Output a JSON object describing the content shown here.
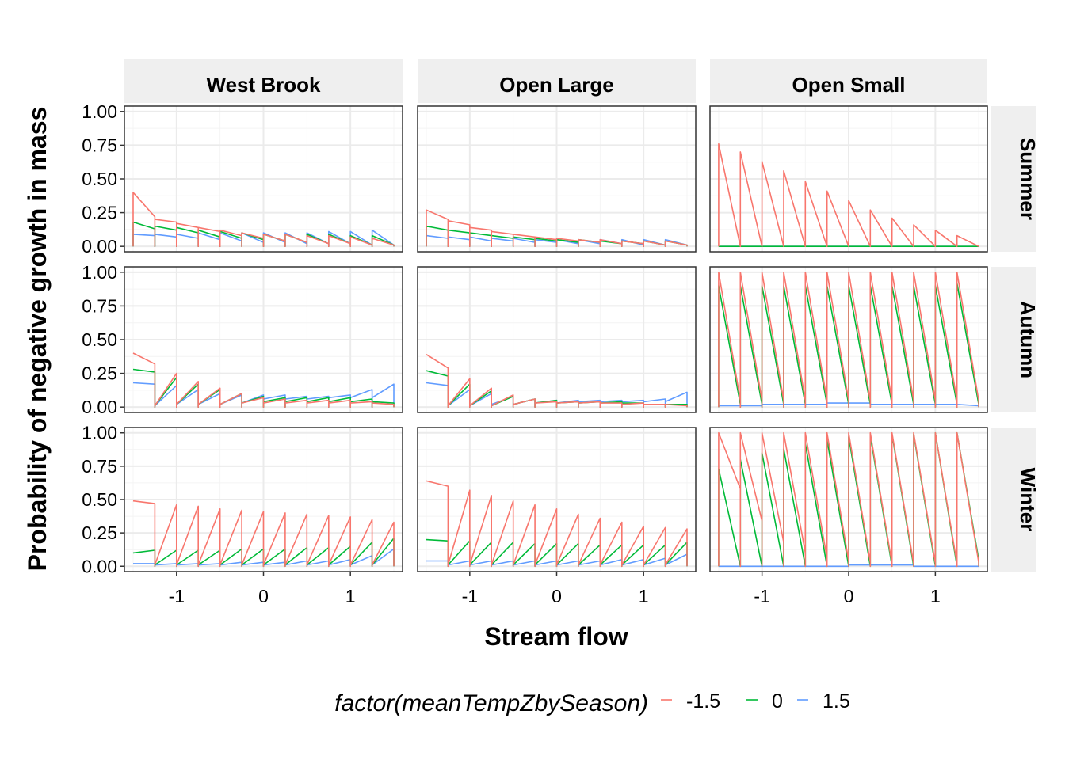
{
  "chart_data": {
    "type": "line",
    "ylabel": "Probability of negative growth in mass",
    "xlabel": "Stream flow",
    "columns": [
      "West Brook",
      "Open Large",
      "Open Small"
    ],
    "rows": [
      "Summer",
      "Autumn",
      "Winter"
    ],
    "xlim": [
      -1.6,
      1.6
    ],
    "ylim": [
      0,
      1
    ],
    "x_ticks": [
      -1,
      0,
      1
    ],
    "x_tick_labels": [
      "-1",
      "0",
      "1"
    ],
    "y_ticks": [
      0,
      0.25,
      0.5,
      0.75,
      1
    ],
    "y_tick_labels": [
      "0.00",
      "0.25",
      "0.50",
      "0.75",
      "1.00"
    ],
    "x_breaks": [
      -1.5,
      -1.25,
      -1.0,
      -0.75,
      -0.5,
      -0.25,
      0.0,
      0.25,
      0.5,
      0.75,
      1.0,
      1.25,
      1.5
    ],
    "grid": true,
    "legend": {
      "title": "factor(meanTempZbySeason)",
      "position": "bottom",
      "entries": [
        {
          "label": "-1.5",
          "color": "#F8766D"
        },
        {
          "label": "0",
          "color": "#00BA38"
        },
        {
          "label": "1.5",
          "color": "#619CFF"
        }
      ]
    },
    "panels": [
      {
        "row": "Summer",
        "column": "West Brook",
        "mode": "drop",
        "series": [
          {
            "name": "-1.5",
            "start": [
              0.4,
              0.2,
              0.17,
              0.14,
              0.12,
              0.1,
              0.09,
              0.09,
              0.08,
              0.08,
              0.07,
              0.06
            ],
            "end": [
              0.22,
              0.18,
              0.14,
              0.11,
              0.08,
              0.06,
              0.04,
              0.03,
              0.02,
              0.02,
              0.01,
              0.01
            ]
          },
          {
            "name": "0",
            "start": [
              0.18,
              0.15,
              0.14,
              0.12,
              0.11,
              0.1,
              0.09,
              0.09,
              0.09,
              0.09,
              0.08,
              0.08
            ],
            "end": [
              0.13,
              0.12,
              0.1,
              0.07,
              0.06,
              0.05,
              0.04,
              0.03,
              0.02,
              0.02,
              0.01,
              0.01
            ]
          },
          {
            "name": "1.5",
            "start": [
              0.09,
              0.09,
              0.09,
              0.1,
              0.1,
              0.1,
              0.1,
              0.1,
              0.1,
              0.11,
              0.11,
              0.12
            ],
            "end": [
              0.08,
              0.07,
              0.06,
              0.05,
              0.04,
              0.03,
              0.03,
              0.02,
              0.02,
              0.02,
              0.01,
              0.01
            ]
          }
        ]
      },
      {
        "row": "Summer",
        "column": "Open Large",
        "mode": "drop",
        "series": [
          {
            "name": "-1.5",
            "start": [
              0.27,
              0.19,
              0.14,
              0.11,
              0.09,
              0.07,
              0.06,
              0.05,
              0.05,
              0.04,
              0.04,
              0.04
            ],
            "end": [
              0.2,
              0.16,
              0.12,
              0.09,
              0.07,
              0.05,
              0.04,
              0.03,
              0.02,
              0.02,
              0.01,
              0.01
            ]
          },
          {
            "name": "0",
            "start": [
              0.15,
              0.12,
              0.1,
              0.08,
              0.07,
              0.06,
              0.05,
              0.05,
              0.04,
              0.04,
              0.04,
              0.04
            ],
            "end": [
              0.12,
              0.1,
              0.08,
              0.06,
              0.05,
              0.04,
              0.03,
              0.03,
              0.02,
              0.02,
              0.01,
              0.01
            ]
          },
          {
            "name": "1.5",
            "start": [
              0.08,
              0.07,
              0.07,
              0.06,
              0.06,
              0.05,
              0.05,
              0.05,
              0.05,
              0.05,
              0.05,
              0.05
            ],
            "end": [
              0.06,
              0.05,
              0.04,
              0.04,
              0.03,
              0.03,
              0.02,
              0.02,
              0.02,
              0.01,
              0.01,
              0.01
            ]
          }
        ]
      },
      {
        "row": "Summer",
        "column": "Open Small",
        "mode": "drop",
        "series": [
          {
            "name": "-1.5",
            "start": [
              0.76,
              0.7,
              0.63,
              0.56,
              0.48,
              0.41,
              0.34,
              0.27,
              0.21,
              0.16,
              0.12,
              0.08
            ],
            "end": [
              0.0,
              0.0,
              0.0,
              0.0,
              0.0,
              0.0,
              0.0,
              0.0,
              0.0,
              0.0,
              0.0,
              0.0
            ]
          },
          {
            "name": "0",
            "start": [
              0.0,
              0.0,
              0.0,
              0.0,
              0.0,
              0.0,
              0.0,
              0.0,
              0.0,
              0.0,
              0.0,
              0.0
            ],
            "end": [
              0.0,
              0.0,
              0.0,
              0.0,
              0.0,
              0.0,
              0.0,
              0.0,
              0.0,
              0.0,
              0.0,
              0.0
            ]
          },
          {
            "name": "1.5",
            "start": [
              0.0,
              0.0,
              0.0,
              0.0,
              0.0,
              0.0,
              0.0,
              0.0,
              0.0,
              0.0,
              0.0,
              0.0
            ],
            "end": [
              0.0,
              0.0,
              0.0,
              0.0,
              0.0,
              0.0,
              0.0,
              0.0,
              0.0,
              0.0,
              0.0,
              0.0
            ]
          }
        ]
      },
      {
        "row": "Autumn",
        "column": "West Brook",
        "mode": "rise",
        "series": [
          {
            "name": "-1.5",
            "start": [
              0.4,
              0.01,
              0.02,
              0.02,
              0.02,
              0.03,
              0.03,
              0.03,
              0.03,
              0.03,
              0.03,
              0.03
            ],
            "end": [
              0.32,
              0.25,
              0.19,
              0.14,
              0.1,
              0.07,
              0.06,
              0.05,
              0.05,
              0.05,
              0.04,
              0.02
            ]
          },
          {
            "name": "0",
            "start": [
              0.28,
              0.01,
              0.02,
              0.02,
              0.02,
              0.03,
              0.04,
              0.04,
              0.04,
              0.04,
              0.04,
              0.04
            ],
            "end": [
              0.26,
              0.22,
              0.17,
              0.13,
              0.1,
              0.08,
              0.07,
              0.07,
              0.07,
              0.07,
              0.06,
              0.03
            ]
          },
          {
            "name": "1.5",
            "start": [
              0.18,
              0.01,
              0.02,
              0.02,
              0.02,
              0.03,
              0.06,
              0.06,
              0.06,
              0.07,
              0.07,
              0.07
            ],
            "end": [
              0.17,
              0.16,
              0.13,
              0.1,
              0.09,
              0.09,
              0.09,
              0.08,
              0.08,
              0.09,
              0.13,
              0.17
            ]
          }
        ]
      },
      {
        "row": "Autumn",
        "column": "Open Large",
        "mode": "rise",
        "series": [
          {
            "name": "-1.5",
            "start": [
              0.39,
              0.01,
              0.01,
              0.01,
              0.02,
              0.03,
              0.03,
              0.03,
              0.03,
              0.02,
              0.02,
              0.02
            ],
            "end": [
              0.29,
              0.21,
              0.14,
              0.09,
              0.06,
              0.04,
              0.04,
              0.04,
              0.03,
              0.03,
              0.02,
              0.01
            ]
          },
          {
            "name": "0",
            "start": [
              0.27,
              0.01,
              0.01,
              0.01,
              0.02,
              0.03,
              0.03,
              0.03,
              0.03,
              0.03,
              0.02,
              0.02
            ],
            "end": [
              0.23,
              0.17,
              0.12,
              0.08,
              0.06,
              0.05,
              0.04,
              0.04,
              0.04,
              0.03,
              0.02,
              0.02
            ]
          },
          {
            "name": "1.5",
            "start": [
              0.18,
              0.01,
              0.01,
              0.02,
              0.02,
              0.03,
              0.03,
              0.04,
              0.04,
              0.04,
              0.04,
              0.04
            ],
            "end": [
              0.16,
              0.13,
              0.1,
              0.08,
              0.06,
              0.05,
              0.05,
              0.05,
              0.05,
              0.05,
              0.06,
              0.11
            ]
          }
        ]
      },
      {
        "row": "Autumn",
        "column": "Open Small",
        "mode": "drop",
        "series": [
          {
            "name": "-1.5",
            "start": [
              1.0,
              1.0,
              1.0,
              1.0,
              1.0,
              1.0,
              1.0,
              1.0,
              1.0,
              1.0,
              1.0,
              1.0
            ],
            "end": [
              0.05,
              0.05,
              0.05,
              0.05,
              0.05,
              0.05,
              0.05,
              0.05,
              0.05,
              0.05,
              0.05,
              0.05
            ]
          },
          {
            "name": "0",
            "start": [
              0.9,
              0.9,
              0.9,
              0.9,
              0.9,
              0.9,
              0.9,
              0.9,
              0.9,
              0.9,
              0.9,
              0.92
            ],
            "end": [
              0.02,
              0.02,
              0.02,
              0.02,
              0.02,
              0.02,
              0.02,
              0.02,
              0.02,
              0.02,
              0.02,
              0.02
            ]
          },
          {
            "name": "1.5",
            "start": [
              0.01,
              0.01,
              0.02,
              0.02,
              0.02,
              0.03,
              0.03,
              0.02,
              0.02,
              0.02,
              0.02,
              0.02
            ],
            "end": [
              0.01,
              0.01,
              0.02,
              0.02,
              0.02,
              0.03,
              0.03,
              0.02,
              0.02,
              0.02,
              0.02,
              0.01
            ]
          }
        ]
      },
      {
        "row": "Winter",
        "column": "West Brook",
        "mode": "rise",
        "series": [
          {
            "name": "-1.5",
            "start": [
              0.49,
              0.01,
              0.01,
              0.01,
              0.01,
              0.01,
              0.01,
              0.01,
              0.01,
              0.01,
              0.01,
              0.01
            ],
            "end": [
              0.47,
              0.46,
              0.45,
              0.43,
              0.42,
              0.41,
              0.4,
              0.39,
              0.38,
              0.37,
              0.35,
              0.33
            ]
          },
          {
            "name": "0",
            "start": [
              0.1,
              0.01,
              0.01,
              0.01,
              0.01,
              0.01,
              0.01,
              0.01,
              0.01,
              0.01,
              0.01,
              0.01
            ],
            "end": [
              0.12,
              0.12,
              0.12,
              0.12,
              0.13,
              0.13,
              0.13,
              0.14,
              0.14,
              0.15,
              0.18,
              0.21
            ]
          },
          {
            "name": "1.5",
            "start": [
              0.02,
              0.01,
              0.01,
              0.01,
              0.01,
              0.01,
              0.01,
              0.01,
              0.01,
              0.01,
              0.01,
              0.01
            ],
            "end": [
              0.02,
              0.02,
              0.02,
              0.02,
              0.03,
              0.03,
              0.03,
              0.04,
              0.04,
              0.05,
              0.08,
              0.13
            ]
          }
        ]
      },
      {
        "row": "Winter",
        "column": "Open Large",
        "mode": "rise",
        "series": [
          {
            "name": "-1.5",
            "start": [
              0.64,
              0.01,
              0.01,
              0.01,
              0.01,
              0.01,
              0.01,
              0.01,
              0.01,
              0.01,
              0.01,
              0.01
            ],
            "end": [
              0.6,
              0.57,
              0.53,
              0.49,
              0.46,
              0.43,
              0.39,
              0.36,
              0.33,
              0.3,
              0.29,
              0.28
            ]
          },
          {
            "name": "0",
            "start": [
              0.2,
              0.01,
              0.01,
              0.01,
              0.01,
              0.01,
              0.01,
              0.01,
              0.01,
              0.01,
              0.01,
              0.01
            ],
            "end": [
              0.19,
              0.19,
              0.18,
              0.18,
              0.17,
              0.17,
              0.17,
              0.16,
              0.16,
              0.16,
              0.16,
              0.18
            ]
          },
          {
            "name": "1.5",
            "start": [
              0.04,
              0.01,
              0.01,
              0.01,
              0.01,
              0.01,
              0.01,
              0.01,
              0.01,
              0.01,
              0.01,
              0.01
            ],
            "end": [
              0.04,
              0.04,
              0.04,
              0.04,
              0.04,
              0.04,
              0.04,
              0.04,
              0.05,
              0.05,
              0.06,
              0.09
            ]
          }
        ]
      },
      {
        "row": "Winter",
        "column": "Open Small",
        "mode": "drop",
        "series": [
          {
            "name": "-1.5",
            "start": [
              1.0,
              1.0,
              1.0,
              1.0,
              1.0,
              1.0,
              1.0,
              1.0,
              1.0,
              1.0,
              1.0,
              1.0
            ],
            "end": [
              0.58,
              0.34,
              0.18,
              0.1,
              0.06,
              0.04,
              0.03,
              0.02,
              0.02,
              0.02,
              0.02,
              0.03
            ]
          },
          {
            "name": "0",
            "start": [
              0.73,
              0.8,
              0.85,
              0.88,
              0.92,
              0.95,
              0.97,
              0.98,
              0.99,
              0.99,
              1.0,
              1.0
            ],
            "end": [
              0.0,
              0.0,
              0.0,
              0.0,
              0.0,
              0.0,
              0.0,
              0.0,
              0.0,
              0.0,
              0.0,
              0.05
            ]
          },
          {
            "name": "1.5",
            "start": [
              0.0,
              0.0,
              0.0,
              0.0,
              0.0,
              0.0,
              0.01,
              0.01,
              0.01,
              0.0,
              0.0,
              0.0
            ],
            "end": [
              0.0,
              0.0,
              0.0,
              0.0,
              0.0,
              0.0,
              0.01,
              0.01,
              0.01,
              0.0,
              0.0,
              0.0
            ]
          }
        ]
      }
    ]
  }
}
